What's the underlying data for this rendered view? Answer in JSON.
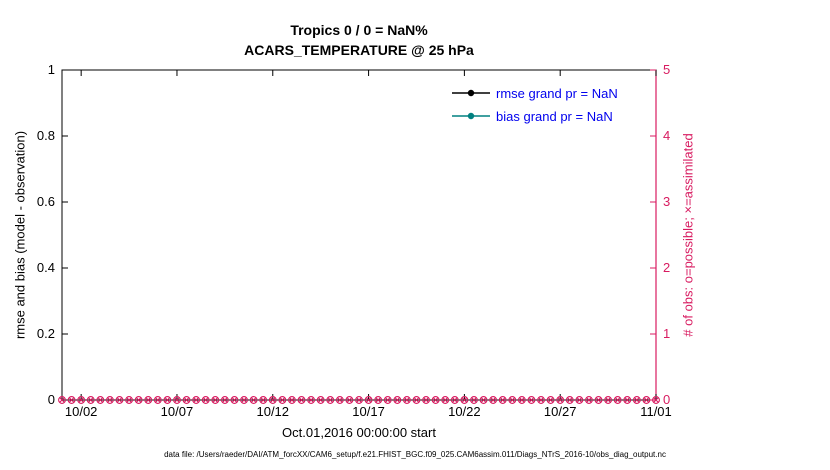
{
  "figure": {
    "title_line1": "Tropics 0 / 0 = NaN%",
    "title_line2": "ACARS_TEMPERATURE @ 25 hPa",
    "left_ylabel": "rmse and bias (model - observation)",
    "right_ylabel": "# of obs: o=possible; ×=assimilated",
    "xlabel": "Oct.01,2016 00:00:00 start",
    "caption": "data file: /Users/raeder/DAI/ATM_forcXX/CAM6_setup/f.e21.FHIST_BGC.f09_025.CAM6assim.011/Diags_NTrS_2016-10/obs_diag_output.nc"
  },
  "colors": {
    "accent_pink": "#d81b60",
    "legend_text_blue": "#0000ee",
    "rmse_black": "#000000",
    "bias_teal": "#008080",
    "axis_black": "#000000"
  },
  "chart_data": {
    "type": "line",
    "title": "Tropics 0 / 0 = NaN%",
    "subtitle": "ACARS_TEMPERATURE @ 25 hPa",
    "xlabel": "Oct.01,2016 00:00:00 start",
    "grid": false,
    "legend_position": "top-right-inside",
    "x_range_days": [
      0,
      31
    ],
    "x_ticks": [
      {
        "day": 1,
        "label": "10/02"
      },
      {
        "day": 6,
        "label": "10/07"
      },
      {
        "day": 11,
        "label": "10/12"
      },
      {
        "day": 16,
        "label": "10/17"
      },
      {
        "day": 21,
        "label": "10/22"
      },
      {
        "day": 26,
        "label": "10/27"
      },
      {
        "day": 31,
        "label": "11/01"
      }
    ],
    "left_axis": {
      "label": "rmse and bias (model - observation)",
      "range": [
        0,
        1
      ],
      "values": [
        0,
        0.2,
        0.4,
        0.6,
        0.8,
        1
      ],
      "ticks": [
        "0",
        "0.2",
        "0.4",
        "0.6",
        "0.8",
        "1"
      ]
    },
    "right_axis": {
      "label": "# of obs: o=possible; ×=assimilated",
      "range": [
        0,
        5
      ],
      "values": [
        0,
        1,
        2,
        3,
        4,
        5
      ],
      "ticks": [
        "0",
        "1",
        "2",
        "3",
        "4",
        "5"
      ]
    },
    "legend": [
      {
        "label": "rmse grand pr = NaN",
        "color": "#000000"
      },
      {
        "label": "bias grand pr = NaN",
        "color": "#008080"
      }
    ],
    "series": [
      {
        "name": "rmse",
        "grand_pr": "NaN",
        "values": []
      },
      {
        "name": "bias",
        "grand_pr": "NaN",
        "values": []
      }
    ],
    "obs_markers": {
      "interval_days": 0.5,
      "start_day": 0,
      "end_day": 31,
      "possible_value": 0,
      "assimilated_value": 0
    }
  }
}
